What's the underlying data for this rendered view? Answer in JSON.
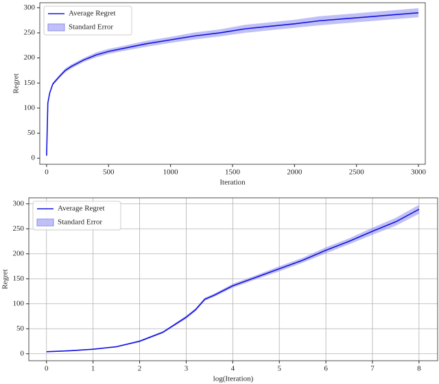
{
  "chart_data": [
    {
      "type": "line",
      "xlabel": "Iteration",
      "ylabel": "Regret",
      "x": [
        0,
        10,
        25,
        50,
        100,
        150,
        200,
        300,
        400,
        500,
        600,
        800,
        1000,
        1200,
        1400,
        1600,
        1800,
        2000,
        2200,
        2400,
        2600,
        2800,
        3000
      ],
      "series": [
        {
          "name": "Average Regret",
          "color": "#1010e0",
          "values": [
            5,
            110,
            130,
            148,
            162,
            175,
            183,
            196,
            206,
            213,
            218,
            228,
            236,
            244,
            250,
            258,
            263,
            268,
            274,
            278,
            282,
            286,
            290
          ]
        }
      ],
      "band": {
        "name": "Standard Error",
        "color": "#8c8cf0",
        "lower": [
          4,
          107,
          127,
          145,
          159,
          171,
          179,
          192,
          201,
          208,
          213,
          222,
          230,
          237,
          243,
          250,
          255,
          260,
          265,
          269,
          273,
          277,
          281
        ],
        "upper": [
          6,
          113,
          133,
          151,
          165,
          179,
          187,
          200,
          211,
          218,
          223,
          234,
          242,
          251,
          257,
          266,
          271,
          276,
          283,
          287,
          291,
          295,
          299
        ]
      },
      "xlim": [
        -55,
        3055
      ],
      "ylim": [
        -12,
        310
      ],
      "xticks": [
        0,
        500,
        1000,
        1500,
        2000,
        2500,
        3000
      ],
      "yticks": [
        0,
        50,
        100,
        150,
        200,
        250,
        300
      ],
      "grid": false,
      "legend": "upper left"
    },
    {
      "type": "line",
      "xlabel": "log(Iteration)",
      "ylabel": "Regret",
      "x": [
        0,
        0.5,
        1,
        1.5,
        2,
        2.5,
        3,
        3.2,
        3.4,
        3.6,
        4,
        4.5,
        5,
        5.5,
        6,
        6.5,
        7,
        7.5,
        8
      ],
      "series": [
        {
          "name": "Average Regret",
          "color": "#1010e0",
          "values": [
            4,
            6,
            9,
            14,
            25,
            43,
            73,
            88,
            109,
            117,
            136,
            153,
            170,
            187,
            207,
            225,
            245,
            264,
            289
          ]
        }
      ],
      "band": {
        "name": "Standard Error",
        "color": "#8c8cf0",
        "lower": [
          3,
          5,
          8,
          13,
          23,
          41,
          70,
          85,
          106,
          114,
          132,
          149,
          165,
          182,
          201,
          219,
          238,
          256,
          280
        ],
        "upper": [
          5,
          7,
          10,
          15,
          27,
          45,
          76,
          91,
          112,
          120,
          140,
          157,
          175,
          192,
          213,
          231,
          252,
          272,
          298
        ]
      },
      "xlim": [
        -0.38,
        8.4
      ],
      "ylim": [
        -14,
        312
      ],
      "xticks": [
        0,
        1,
        2,
        3,
        4,
        5,
        6,
        7,
        8
      ],
      "yticks": [
        0,
        50,
        100,
        150,
        200,
        250,
        300
      ],
      "grid": true,
      "legend": "upper left"
    }
  ]
}
